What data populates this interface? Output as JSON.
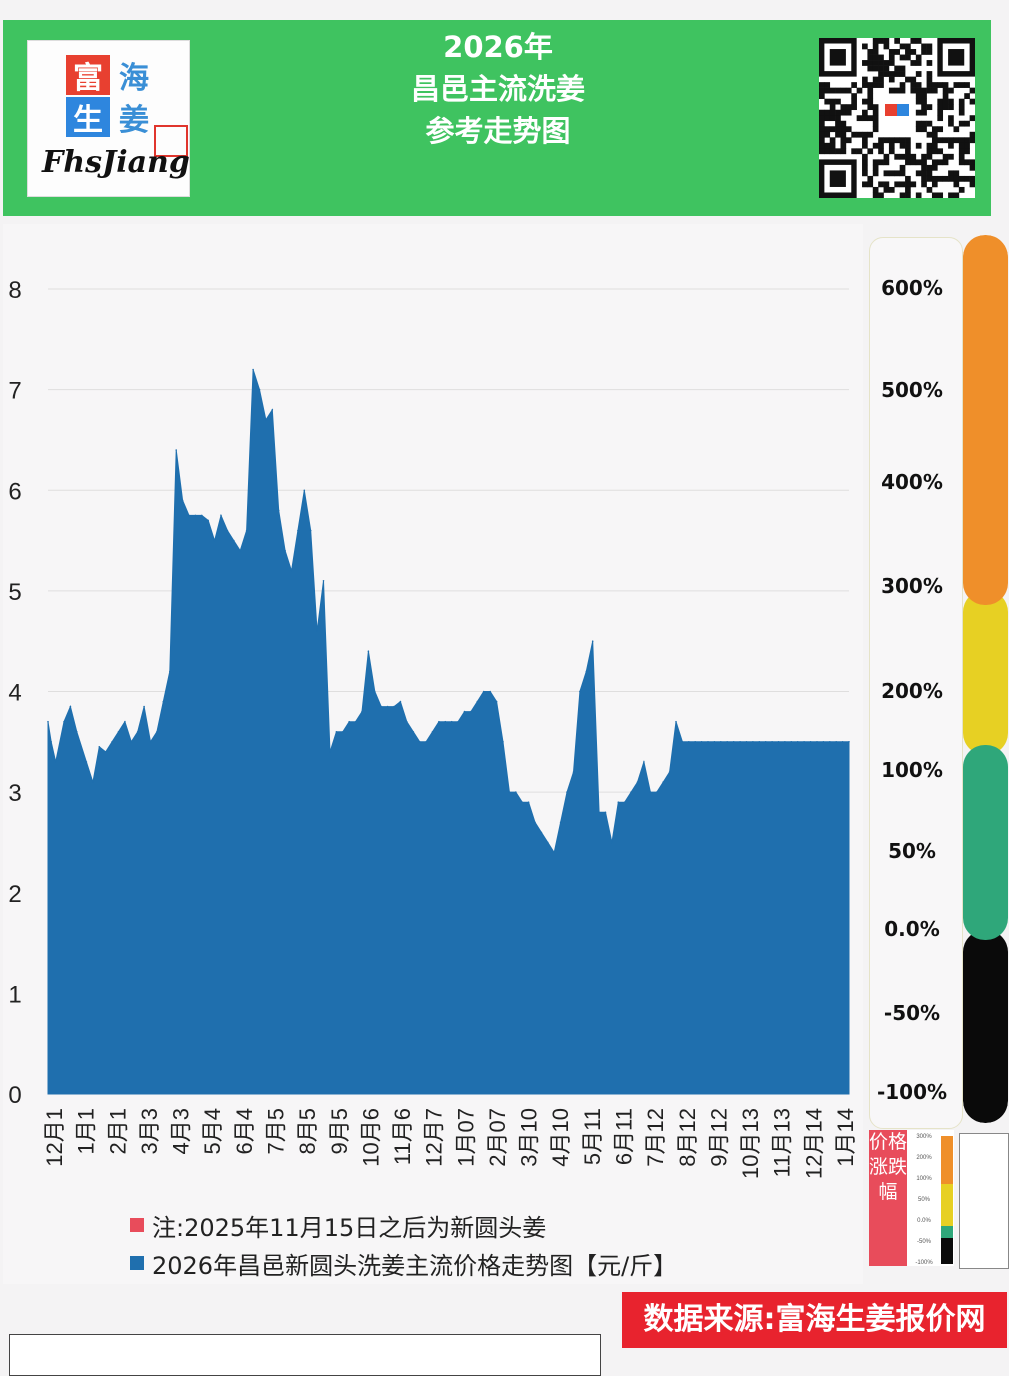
{
  "header": {
    "title_lines": [
      "2026年",
      "昌邑主流洗姜",
      "参考走势图"
    ],
    "logo_chars": [
      "富",
      "海",
      "生",
      "姜"
    ],
    "logo_brand": "FhsJiang"
  },
  "chart_data": {
    "type": "area",
    "ylim": [
      0,
      8
    ],
    "yticks": [
      "0",
      "1",
      "2",
      "3",
      "4",
      "5",
      "6",
      "7",
      "8"
    ],
    "x_tick_labels": [
      "12月1",
      "1月1",
      "2月1",
      "3月3",
      "4月3",
      "5月4",
      "6月4",
      "7月5",
      "8月5",
      "9月5",
      "10月6",
      "11月6",
      "12月7",
      "1月07",
      "2月07",
      "3月10",
      "4月10",
      "5月11",
      "6月11",
      "7月12",
      "8月12",
      "9月12",
      "10月13",
      "11月13",
      "12月14",
      "1月14"
    ],
    "series": [
      {
        "name": "2026年昌邑新圆头洗姜主流价格走势图【元/斤】",
        "color": "#1f6fae",
        "x": [
          0,
          0.5,
          1.2,
          2.5,
          3.5,
          4.5,
          6,
          7,
          8,
          9,
          10,
          11,
          12,
          13,
          14,
          15,
          16,
          17,
          18,
          19,
          20,
          21,
          22,
          23,
          24,
          25,
          26,
          27,
          28,
          29,
          30,
          31,
          32,
          33,
          34,
          35,
          36,
          37,
          38,
          39,
          40,
          41,
          42,
          43,
          44,
          45,
          46,
          47,
          48,
          49,
          50,
          51,
          52,
          53,
          54,
          55,
          56,
          57,
          58,
          59,
          60,
          61,
          62,
          63,
          64,
          65,
          66,
          67,
          68,
          69,
          70,
          71,
          72,
          73,
          74,
          75,
          76,
          77,
          78,
          79,
          80,
          81,
          82,
          83,
          84,
          85,
          86,
          87,
          88,
          89,
          90,
          91,
          92,
          93,
          94,
          95,
          96,
          97,
          98,
          99,
          100,
          101,
          102,
          103,
          104,
          105,
          106,
          107,
          108,
          109,
          110,
          111,
          112,
          113,
          114,
          115,
          116,
          117,
          118,
          119,
          120,
          121,
          122,
          123,
          124,
          125
        ],
        "values": [
          3.7,
          3.5,
          3.3,
          3.7,
          3.85,
          3.6,
          3.3,
          3.1,
          3.45,
          3.4,
          3.5,
          3.6,
          3.7,
          3.5,
          3.6,
          3.85,
          3.5,
          3.6,
          3.9,
          4.2,
          6.4,
          5.9,
          5.75,
          5.75,
          5.75,
          5.7,
          5.5,
          5.75,
          5.6,
          5.5,
          5.4,
          5.6,
          7.2,
          7.0,
          6.7,
          6.8,
          5.8,
          5.4,
          5.2,
          5.6,
          6.0,
          5.6,
          4.6,
          5.1,
          3.4,
          3.6,
          3.6,
          3.7,
          3.7,
          3.8,
          4.4,
          4.0,
          3.85,
          3.85,
          3.85,
          3.9,
          3.7,
          3.6,
          3.5,
          3.5,
          3.6,
          3.7,
          3.7,
          3.7,
          3.7,
          3.8,
          3.8,
          3.9,
          4.0,
          4.0,
          3.9,
          3.5,
          3.0,
          3.0,
          2.9,
          2.9,
          2.7,
          2.6,
          2.5,
          2.4,
          2.7,
          3.0,
          3.2,
          4.0,
          4.2,
          4.5,
          2.8,
          2.8,
          2.5,
          2.9,
          2.9,
          3.0,
          3.1,
          3.3,
          3.0,
          3.0,
          3.1,
          3.2,
          3.7,
          3.5,
          3.5,
          3.5,
          3.5,
          3.5,
          3.5,
          3.5,
          3.5,
          3.5,
          3.5,
          3.5,
          3.5,
          3.5,
          3.5,
          3.5,
          3.5,
          3.5,
          3.5,
          3.5,
          3.5,
          3.5,
          3.5,
          3.5,
          3.5,
          3.5,
          3.5,
          3.5
        ]
      }
    ],
    "notes": [
      "注:2025年11月15日之后为新圆头姜"
    ],
    "note_color": "#e84c5b"
  },
  "pct_scale": {
    "labels": [
      "600%",
      "500%",
      "400%",
      "300%",
      "200%",
      "100%",
      "50%",
      "0.0%",
      "-50%",
      "-100%"
    ],
    "ramp_colors": [
      "#ef8f2a",
      "#e7d023",
      "#2fa77a",
      "#0a0a0a"
    ],
    "mini_label": "价格涨跌幅",
    "mini_ticks": [
      "300%",
      "200%",
      "100%",
      "50%",
      "0.0%",
      "-50%",
      "-100%"
    ]
  },
  "source": "数据来源:富海生姜报价网"
}
